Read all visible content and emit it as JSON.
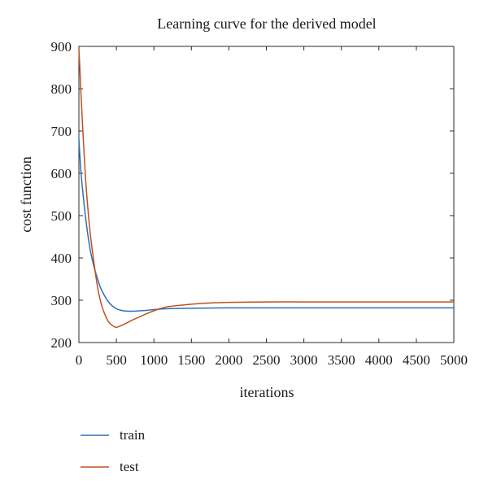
{
  "chart_data": {
    "type": "line",
    "title": "Learning curve for the derived model",
    "xlabel": "iterations",
    "ylabel": "cost function",
    "xlim": [
      0,
      5000
    ],
    "ylim": [
      200,
      900
    ],
    "xticks": [
      0,
      500,
      1000,
      1500,
      2000,
      2500,
      3000,
      3500,
      4000,
      4500,
      5000
    ],
    "yticks": [
      200,
      300,
      400,
      500,
      600,
      700,
      800,
      900
    ],
    "grid": false,
    "legend_position": "bottom-left, below plot",
    "series": [
      {
        "name": "train",
        "color": "#2e6fb7",
        "x": [
          0,
          25,
          50,
          100,
          150,
          200,
          250,
          300,
          400,
          500,
          600,
          700,
          800,
          900,
          1000,
          1200,
          1500,
          2000,
          2500,
          3000,
          4000,
          5000
        ],
        "y": [
          680,
          610,
          560,
          480,
          420,
          380,
          350,
          325,
          295,
          280,
          275,
          274,
          275,
          276,
          278,
          280,
          281,
          282,
          282,
          282,
          282,
          282
        ]
      },
      {
        "name": "test",
        "color": "#c0501e",
        "x": [
          0,
          15,
          30,
          50,
          75,
          100,
          150,
          200,
          250,
          300,
          350,
          400,
          450,
          500,
          600,
          700,
          800,
          900,
          1000,
          1100,
          1200,
          1400,
          1600,
          1800,
          2000,
          2500,
          3000,
          3500,
          4000,
          5000
        ],
        "y": [
          895,
          840,
          780,
          710,
          630,
          560,
          460,
          390,
          330,
          290,
          265,
          248,
          240,
          236,
          243,
          252,
          260,
          268,
          275,
          281,
          285,
          289,
          292,
          294,
          295,
          296,
          296,
          296,
          296,
          296
        ]
      }
    ]
  }
}
